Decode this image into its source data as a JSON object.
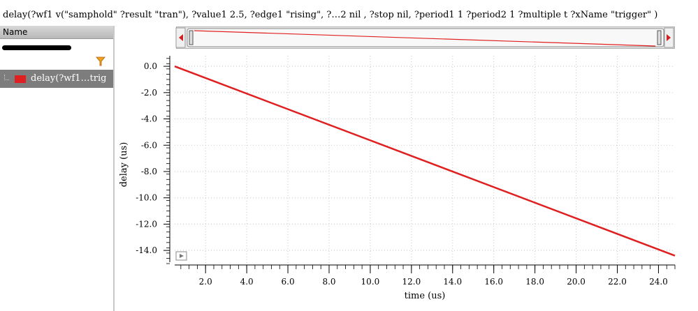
{
  "title": "delay(?wf1 v(\"samphold\" ?result \"tran\"), ?value1 2.5, ?edge1 \"rising\", ?…2 nil , ?stop nil,  ?period1 1 ?period2 1 ?multiple t ?xName \"trigger\" )",
  "panel": {
    "header": "Name",
    "trace_label": "delay(?wf1…trig",
    "filter_icon": "filter-funnel-icon"
  },
  "colors": {
    "trace": "#e02020",
    "grid": "#c8c8c8",
    "panel_selected": "#7d7d7d"
  },
  "chart_data": {
    "type": "line",
    "xlabel": "time (us)",
    "ylabel": "delay (us)",
    "xlim": [
      0.5,
      24.8
    ],
    "ylim": [
      -15.0,
      0.8
    ],
    "xticks": [
      2.0,
      4.0,
      6.0,
      8.0,
      10.0,
      12.0,
      14.0,
      16.0,
      18.0,
      20.0,
      22.0,
      24.0
    ],
    "yticks": [
      0.0,
      -2.0,
      -4.0,
      -6.0,
      -8.0,
      -10.0,
      -12.0,
      -14.0
    ],
    "grid": true,
    "series": [
      {
        "x": [
          0.5,
          24.8
        ],
        "y": [
          0.0,
          -14.4
        ]
      }
    ]
  }
}
